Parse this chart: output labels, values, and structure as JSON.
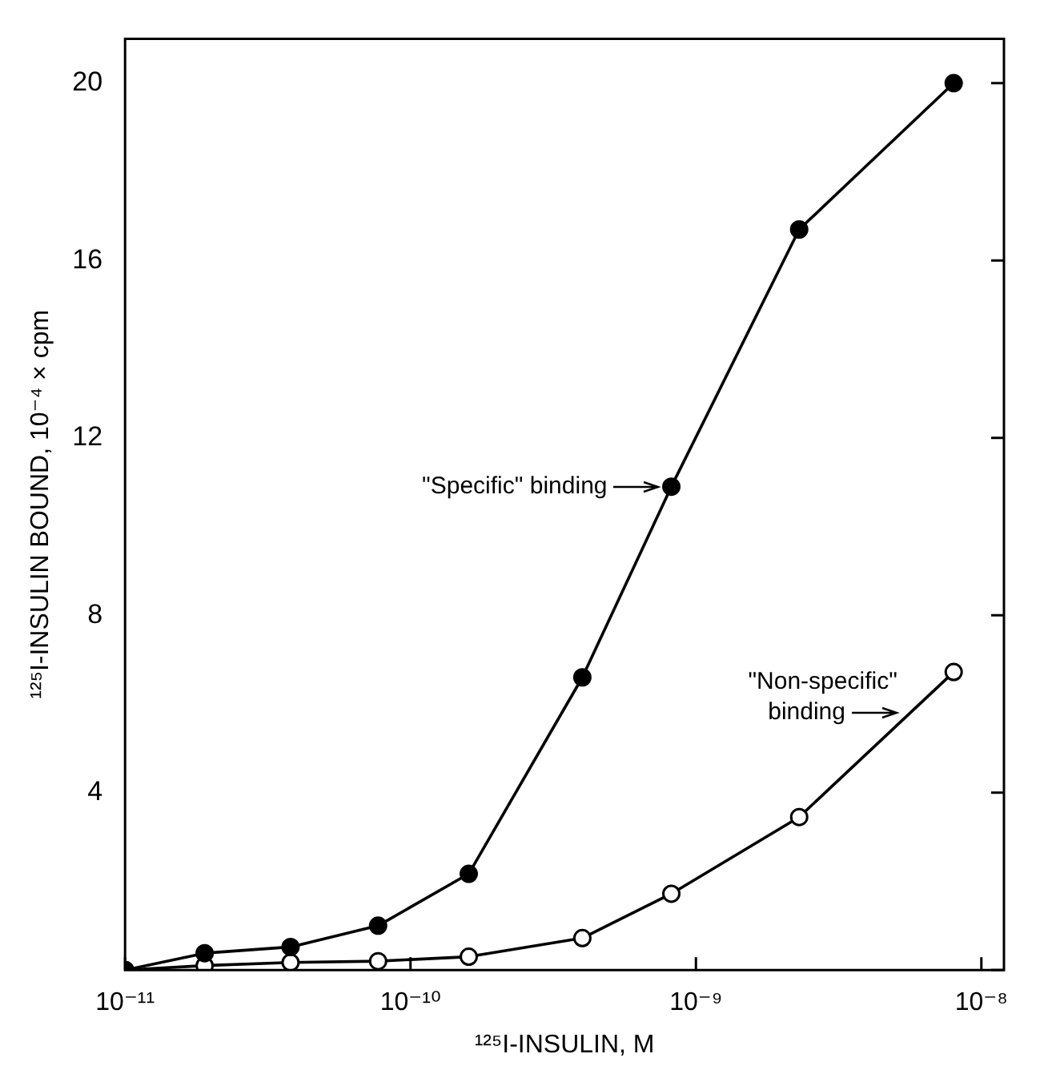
{
  "chart_data": {
    "type": "line",
    "x": [
      1e-11,
      1.9e-11,
      3.8e-11,
      7.7e-11,
      1.6e-10,
      4e-10,
      8.2e-10,
      2.3e-09,
      8e-09
    ],
    "series": [
      {
        "color": "#000000",
        "values": [
          0,
          0.38,
          0.52,
          1.0,
          2.17,
          6.6,
          10.9,
          16.7,
          20.0
        ]
      },
      {
        "color": "#000000",
        "values": [
          0,
          0.1,
          0.17,
          0.2,
          0.3,
          0.72,
          1.72,
          3.45,
          6.72
        ]
      }
    ],
    "xlabel": "¹²⁵I-INSULIN, M",
    "ylabel": "¹²⁵I-INSULIN BOUND, 10⁻⁴ × cpm",
    "log": "x",
    "xlim": [
      1e-11,
      1.2e-08
    ],
    "xticks": [
      {
        "value": 1e-11,
        "label": "10⁻¹¹"
      },
      {
        "value": 1e-10,
        "label": "10⁻¹⁰"
      },
      {
        "value": 1e-09,
        "label": "10⁻⁹"
      },
      {
        "value": 1e-08,
        "label": "10⁻⁸"
      }
    ],
    "ylim": [
      0,
      21
    ],
    "yticks": [
      {
        "value": 0,
        "label": null
      },
      4,
      8,
      12,
      16,
      20
    ],
    "annotations": [
      {
        "text": "\"Specific\" binding",
        "x": 8.2e-10,
        "y": 10.9
      },
      {
        "text": "\"Non-specific\"\nbinding",
        "x": 5.6e-09,
        "y": 5.8
      }
    ],
    "marker": "circle",
    "line_style": "solid",
    "grid": false,
    "legend": false
  }
}
